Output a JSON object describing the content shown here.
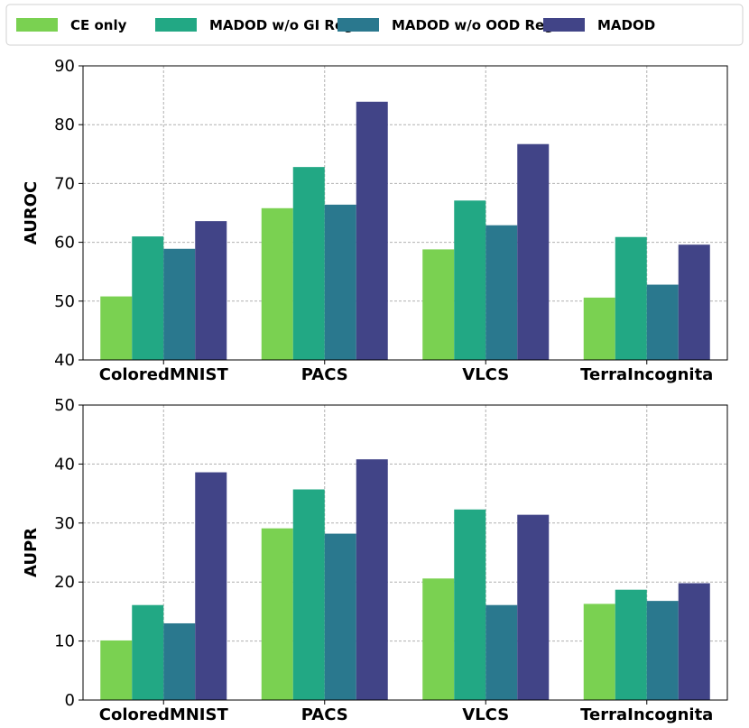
{
  "colors": {
    "CE only": "#7ad151",
    "MADOD w/o GI Reg": "#22a884",
    "MADOD w/o OOD Reg": "#2a788e",
    "MADOD": "#414487"
  },
  "chart_data": [
    {
      "type": "bar",
      "categories": [
        "ColoredMNIST",
        "PACS",
        "VLCS",
        "TerraIncognita"
      ],
      "ylabel": "AUROC",
      "ylim": [
        40,
        90
      ],
      "yticks": [
        40,
        50,
        60,
        70,
        80,
        90
      ],
      "grid": true,
      "series": [
        {
          "name": "CE only",
          "values": [
            50.8,
            65.8,
            58.8,
            50.6
          ]
        },
        {
          "name": "MADOD w/o GI Reg",
          "values": [
            61.0,
            72.8,
            67.1,
            60.9
          ]
        },
        {
          "name": "MADOD w/o OOD Reg",
          "values": [
            58.9,
            66.4,
            62.9,
            52.8
          ]
        },
        {
          "name": "MADOD",
          "values": [
            63.6,
            83.9,
            76.7,
            59.6
          ]
        }
      ]
    },
    {
      "type": "bar",
      "categories": [
        "ColoredMNIST",
        "PACS",
        "VLCS",
        "TerraIncognita"
      ],
      "ylabel": "AUPR",
      "ylim": [
        0,
        50
      ],
      "yticks": [
        0,
        10,
        20,
        30,
        40,
        50
      ],
      "grid": true,
      "series": [
        {
          "name": "CE only",
          "values": [
            10.1,
            29.1,
            20.6,
            16.3
          ]
        },
        {
          "name": "MADOD w/o GI Reg",
          "values": [
            16.1,
            35.7,
            32.3,
            18.7
          ]
        },
        {
          "name": "MADOD w/o OOD Reg",
          "values": [
            13.0,
            28.2,
            16.1,
            16.8
          ]
        },
        {
          "name": "MADOD",
          "values": [
            38.6,
            40.8,
            31.4,
            19.8
          ]
        }
      ]
    }
  ],
  "legend": {
    "position": "top",
    "entries": [
      "CE only",
      "MADOD w/o GI Reg",
      "MADOD w/o OOD Reg",
      "MADOD"
    ]
  }
}
